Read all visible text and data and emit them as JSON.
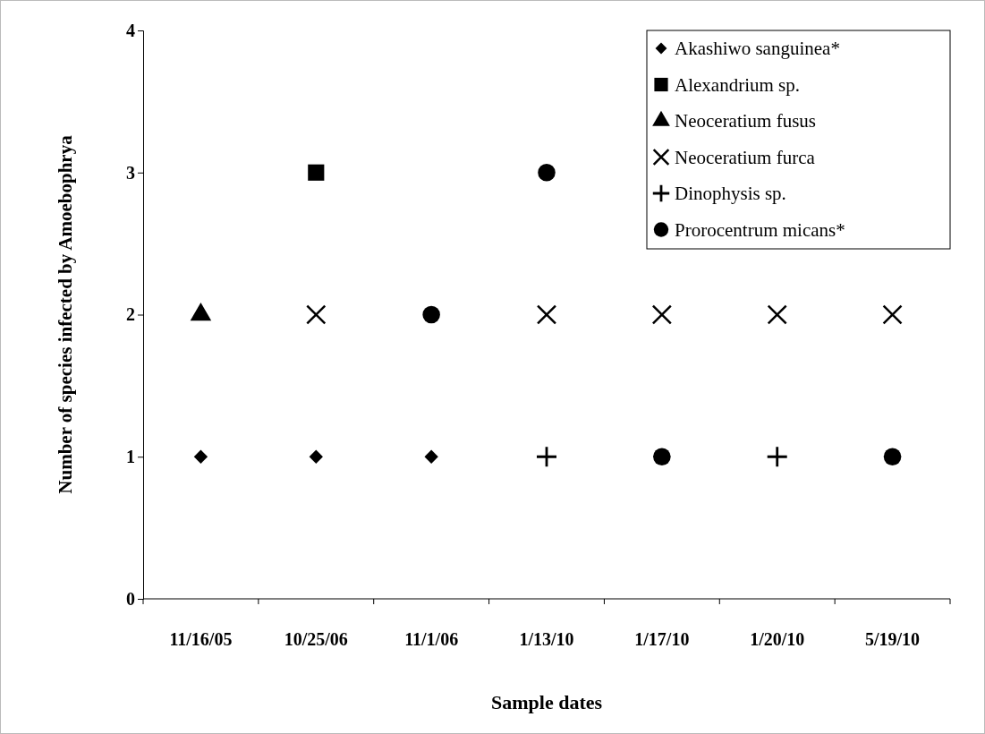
{
  "chart_data": {
    "type": "scatter",
    "xlabel": "Sample dates",
    "ylabel": "Number of species infected by Amoebophrya",
    "categories": [
      "11/16/05",
      "10/25/06",
      "11/1/06",
      "1/13/10",
      "1/17/10",
      "1/20/10",
      "5/19/10"
    ],
    "ylim": [
      0,
      4
    ],
    "yticks": [
      0,
      1,
      2,
      3,
      4
    ],
    "grid": false,
    "legend": "top right",
    "series": [
      {
        "name": "Akashiwo sanguinea*",
        "color": "#000000",
        "marker": "diamond",
        "values": [
          1,
          1,
          1,
          null,
          null,
          null,
          null
        ]
      },
      {
        "name": "Alexandrium sp.",
        "color": "#000000",
        "marker": "square",
        "values": [
          null,
          3,
          null,
          null,
          null,
          null,
          null
        ]
      },
      {
        "name": "Neoceratium fusus",
        "color": "#000000",
        "marker": "triangle",
        "values": [
          2,
          null,
          null,
          null,
          null,
          null,
          null
        ]
      },
      {
        "name": "Neoceratium furca",
        "color": "#000000",
        "marker": "x",
        "values": [
          null,
          2,
          null,
          2,
          2,
          2,
          2
        ]
      },
      {
        "name": "Dinophysis sp.",
        "color": "#000000",
        "marker": "cross",
        "values": [
          null,
          null,
          null,
          1,
          null,
          1,
          null
        ]
      },
      {
        "name": "Prorocentrum micans*",
        "color": "#000000",
        "marker": "circle",
        "values": [
          null,
          null,
          2,
          3,
          1,
          null,
          1
        ]
      }
    ]
  }
}
